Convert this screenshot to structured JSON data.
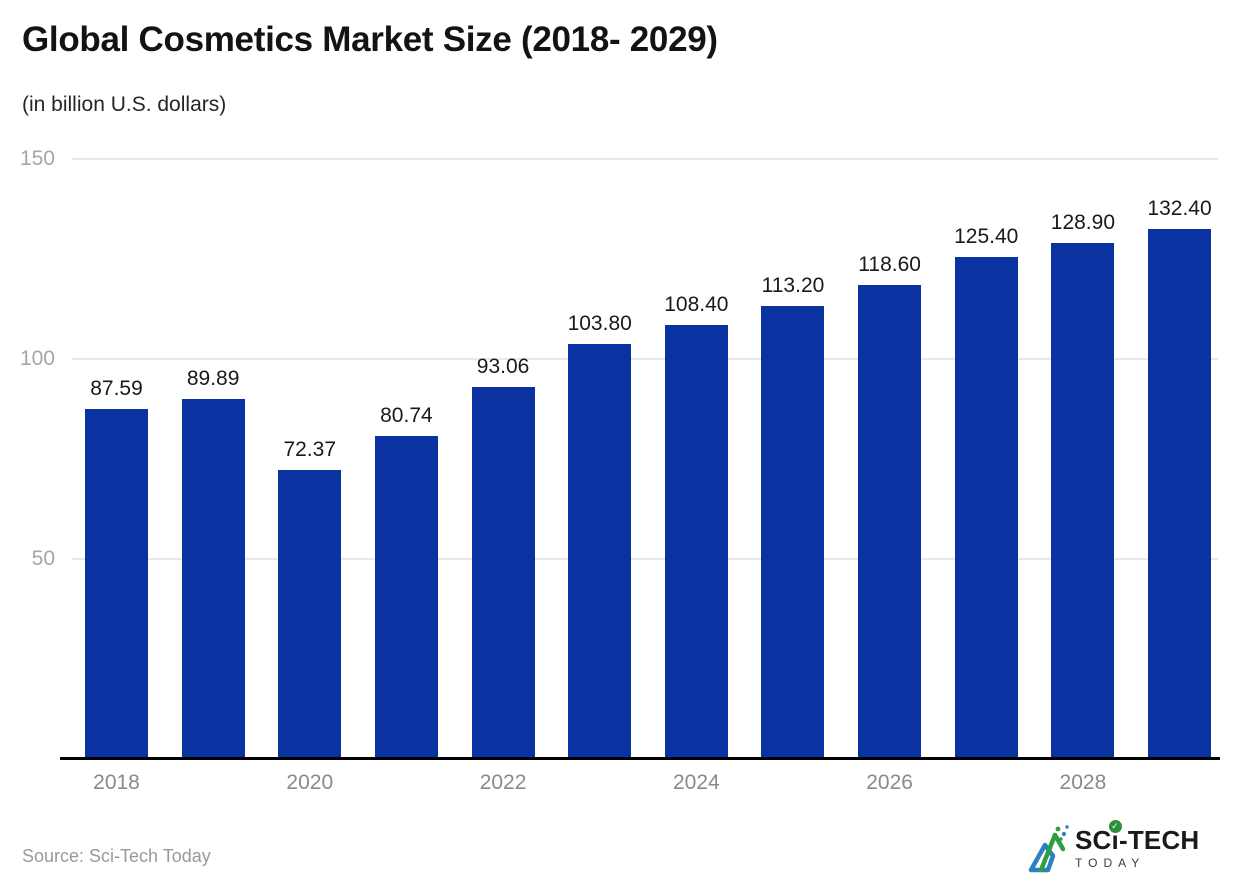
{
  "header": {
    "title": "Global Cosmetics Market Size (2018- 2029)",
    "subtitle": "(in billion U.S. dollars)"
  },
  "chart_data": {
    "type": "bar",
    "title": "Global Cosmetics Market Size (2018- 2029)",
    "subtitle": "(in billion U.S. dollars)",
    "categories": [
      "2018",
      "2019",
      "2020",
      "2021",
      "2022",
      "2023",
      "2024",
      "2025",
      "2026",
      "2027",
      "2028",
      "2029"
    ],
    "values": [
      87.59,
      89.89,
      72.37,
      80.74,
      93.06,
      103.8,
      108.4,
      113.2,
      118.6,
      125.4,
      128.9,
      132.4
    ],
    "value_labels": [
      "87.59",
      "89.89",
      "72.37",
      "80.74",
      "93.06",
      "103.80",
      "108.40",
      "113.20",
      "118.60",
      "125.40",
      "128.90",
      "132.40"
    ],
    "x_tick_labels": [
      "2018",
      "2020",
      "2022",
      "2024",
      "2026",
      "2028"
    ],
    "x_tick_indices": [
      0,
      2,
      4,
      6,
      8,
      10
    ],
    "y_ticks": [
      50,
      100,
      150
    ],
    "ylim": [
      0,
      150
    ],
    "xlabel": "",
    "ylabel": "",
    "grid": true,
    "legend": "none",
    "colors": {
      "bar": "#0a32a0",
      "gridline": "#e9e9e9",
      "axis_line": "#000000",
      "y_tick_label": "#a6a6a6",
      "x_tick_label": "#8a8a8a",
      "value_label": "#1a1a1a"
    }
  },
  "footer": {
    "source": "Source: Sci-Tech Today",
    "logo": {
      "top_left": "SC",
      "top_i": "ı",
      "top_right": "-TECH",
      "bottom": "TODAY",
      "check": "✓",
      "colors": {
        "blue": "#2e7fc2",
        "green": "#2f9e41",
        "text": "#1a1a1a"
      }
    }
  }
}
